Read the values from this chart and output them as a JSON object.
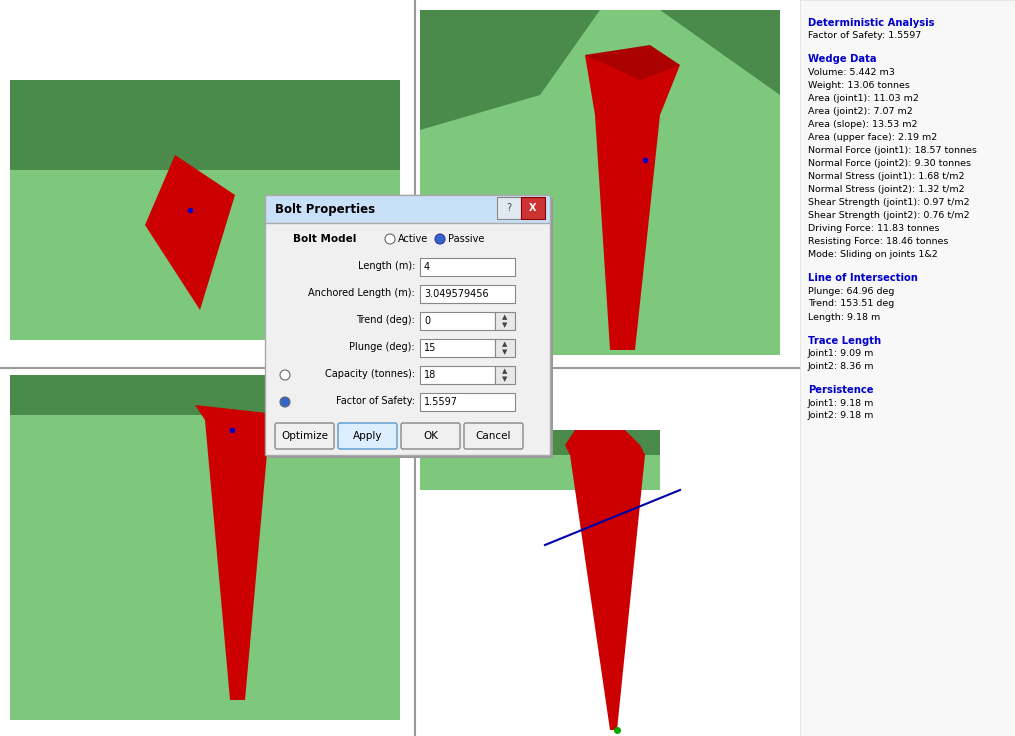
{
  "fig_width": 10.15,
  "fig_height": 7.36,
  "bg_color": "#ffffff",
  "panels": {
    "bg_light_green": "#7ec87e",
    "bg_dark_green": "#4a8a4a",
    "red": "#cc0000",
    "white": "#ffffff",
    "gray_divider": "#999999"
  },
  "right_panel": {
    "sections": [
      {
        "header": "Deterministic Analysis",
        "header_color": "#0000cc",
        "lines": [
          "Factor of Safety: 1.5597"
        ],
        "line_color": "#000000"
      },
      {
        "header": "Wedge Data",
        "header_color": "#0000cc",
        "lines": [
          "Volume: 5.442 m3",
          "Weight: 13.06 tonnes",
          "Area (joint1): 11.03 m2",
          "Area (joint2): 7.07 m2",
          "Area (slope): 13.53 m2",
          "Area (upper face): 2.19 m2",
          "Normal Force (joint1): 18.57 tonnes",
          "Normal Force (joint2): 9.30 tonnes",
          "Normal Stress (joint1): 1.68 t/m2",
          "Normal Stress (joint2): 1.32 t/m2",
          "Shear Strength (joint1): 0.97 t/m2",
          "Shear Strength (joint2): 0.76 t/m2",
          "Driving Force: 11.83 tonnes",
          "Resisting Force: 18.46 tonnes",
          "Mode: Sliding on joints 1&2"
        ],
        "line_color": "#000000"
      },
      {
        "header": "Line of Intersection",
        "header_color": "#0000cc",
        "lines": [
          "Plunge: 64.96 deg",
          "Trend: 153.51 deg",
          "Length: 9.18 m"
        ],
        "line_color": "#000000"
      },
      {
        "header": "Trace Length",
        "header_color": "#0000cc",
        "lines": [
          "Joint1: 9.09 m",
          "Joint2: 8.36 m"
        ],
        "line_color": "#000000"
      },
      {
        "header": "Persistence",
        "header_color": "#0000cc",
        "lines": [
          "Joint1: 9.18 m",
          "Joint2: 9.18 m"
        ],
        "line_color": "#000000"
      }
    ]
  },
  "dialog": {
    "title": "Bolt Properties",
    "buttons": [
      "Optimize",
      "Apply",
      "OK",
      "Cancel"
    ]
  }
}
